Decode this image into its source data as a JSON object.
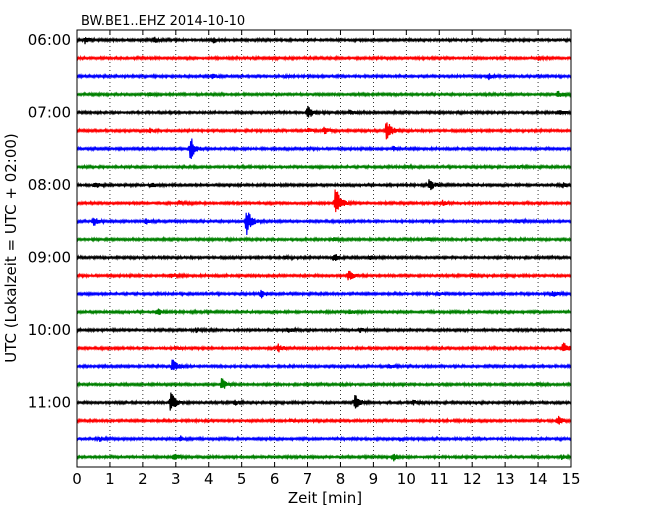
{
  "chart_data": {
    "type": "line",
    "title": "BW.BE1..EHZ 2014-10-10",
    "xlabel": "Zeit  [min]",
    "ylabel": "UTC (Lokalzeit = UTC + 02:00)",
    "xlim": [
      0,
      15
    ],
    "x_ticks": [
      "0",
      "1",
      "2",
      "3",
      "4",
      "5",
      "6",
      "7",
      "8",
      "9",
      "10",
      "11",
      "12",
      "13",
      "14",
      "15"
    ],
    "y_ticks": [
      "06:00",
      "07:00",
      "08:00",
      "09:00",
      "10:00",
      "11:00"
    ],
    "x_grid": "dotted vertical at every minute",
    "trace_colors": [
      "#000000",
      "#ff0000",
      "#0000ff",
      "#008000"
    ],
    "traces": [
      {
        "start": "06:00",
        "events": [
          [
            0.25,
            0.4
          ],
          [
            2.35,
            0.3
          ],
          [
            4.15,
            0.35
          ]
        ]
      },
      {
        "start": "06:15",
        "events": [
          [
            5.9,
            0.15
          ],
          [
            14.0,
            0.2
          ]
        ]
      },
      {
        "start": "06:30",
        "events": [
          [
            4.1,
            0.25
          ],
          [
            6.3,
            0.15
          ],
          [
            12.5,
            0.35
          ]
        ]
      },
      {
        "start": "06:45",
        "events": [
          [
            14.6,
            0.35
          ],
          [
            2.2,
            0.15
          ]
        ]
      },
      {
        "start": "07:00",
        "events": [
          [
            7.0,
            0.9
          ],
          [
            8.3,
            0.3
          ],
          [
            14.6,
            0.3
          ]
        ]
      },
      {
        "start": "07:15",
        "events": [
          [
            9.4,
            1.5
          ],
          [
            2.2,
            0.25
          ],
          [
            7.0,
            0.2
          ],
          [
            7.5,
            0.4
          ]
        ]
      },
      {
        "start": "07:30",
        "events": [
          [
            3.45,
            1.5
          ],
          [
            9.6,
            0.25
          ]
        ]
      },
      {
        "start": "07:45",
        "events": [
          [
            13.4,
            0.2
          ],
          [
            10.0,
            0.15
          ]
        ]
      },
      {
        "start": "08:00",
        "events": [
          [
            0.55,
            0.35
          ],
          [
            2.25,
            0.25
          ],
          [
            10.7,
            0.7
          ],
          [
            14.75,
            0.3
          ]
        ]
      },
      {
        "start": "08:15",
        "events": [
          [
            7.85,
            2.1
          ],
          [
            3.1,
            0.2
          ],
          [
            11.1,
            0.25
          ]
        ]
      },
      {
        "start": "08:30",
        "events": [
          [
            5.15,
            1.6
          ],
          [
            0.5,
            0.6
          ],
          [
            2.1,
            0.3
          ],
          [
            13.4,
            0.25
          ]
        ]
      },
      {
        "start": "08:45",
        "events": [
          [
            10.65,
            0.25
          ],
          [
            7.8,
            0.15
          ]
        ]
      },
      {
        "start": "09:00",
        "events": [
          [
            7.8,
            0.5
          ],
          [
            6.3,
            0.15
          ],
          [
            8.9,
            0.2
          ]
        ]
      },
      {
        "start": "09:15",
        "events": [
          [
            8.25,
            0.6
          ],
          [
            2.85,
            0.35
          ],
          [
            12.0,
            0.2
          ]
        ]
      },
      {
        "start": "09:30",
        "events": [
          [
            5.6,
            0.45
          ],
          [
            14.45,
            0.35
          ],
          [
            11.0,
            0.2
          ]
        ]
      },
      {
        "start": "09:45",
        "events": [
          [
            2.45,
            0.35
          ],
          [
            8.3,
            0.25
          ]
        ]
      },
      {
        "start": "10:00",
        "events": [
          [
            3.6,
            0.3
          ],
          [
            6.4,
            0.35
          ],
          [
            8.6,
            0.25
          ]
        ]
      },
      {
        "start": "10:15",
        "events": [
          [
            14.75,
            0.7
          ],
          [
            6.1,
            0.5
          ],
          [
            3.0,
            0.2
          ]
        ]
      },
      {
        "start": "10:30",
        "events": [
          [
            2.9,
            0.8
          ],
          [
            9.5,
            0.2
          ]
        ]
      },
      {
        "start": "10:45",
        "events": [
          [
            4.4,
            0.75
          ],
          [
            14.0,
            0.15
          ]
        ]
      },
      {
        "start": "11:00",
        "events": [
          [
            2.85,
            1.3
          ],
          [
            8.45,
            1.0
          ],
          [
            4.8,
            0.3
          ],
          [
            10.2,
            0.25
          ]
        ]
      },
      {
        "start": "11:15",
        "events": [
          [
            14.6,
            0.55
          ],
          [
            6.5,
            0.15
          ]
        ]
      },
      {
        "start": "11:30",
        "events": [
          [
            3.15,
            0.35
          ],
          [
            0.7,
            0.25
          ],
          [
            9.8,
            0.2
          ]
        ]
      },
      {
        "start": "11:45",
        "events": [
          [
            2.95,
            0.45
          ],
          [
            9.6,
            0.45
          ],
          [
            14.7,
            0.3
          ]
        ]
      }
    ]
  }
}
